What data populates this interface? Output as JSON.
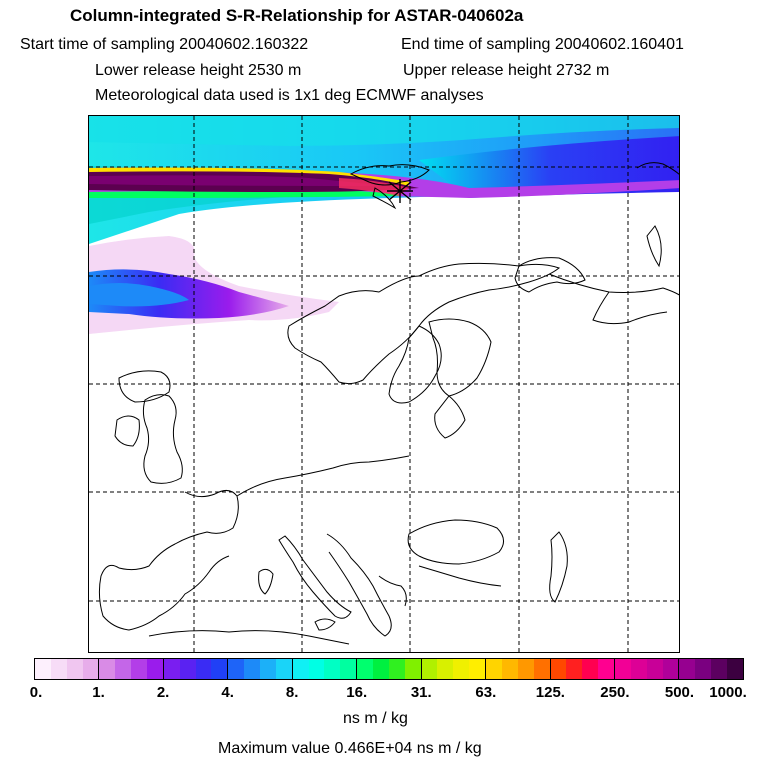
{
  "title": "Column-integrated S-R-Relationship for ASTAR-040602a",
  "sampling": {
    "start_label": "Start time of sampling 20040602.160322",
    "end_label": "End time of sampling 20040602.160401"
  },
  "release": {
    "lower_label": "Lower release height 2530 m",
    "upper_label": "Upper release height 2732 m"
  },
  "met_label": "Meteorological data used is 1x1 deg ECMWF analyses",
  "colorbar": {
    "ticks": [
      "0.",
      "1.",
      "2.",
      "4.",
      "8.",
      "16.",
      "31.",
      "63.",
      "125.",
      "250.",
      "500.",
      "1000."
    ],
    "colors": [
      "#fdf0fd",
      "#f7dcf7",
      "#f0c6f0",
      "#e7adea",
      "#d98be6",
      "#c466e8",
      "#b33ee8",
      "#9a1cec",
      "#7a1ef0",
      "#5a22f2",
      "#3a2cf4",
      "#2040f6",
      "#1e64f8",
      "#1d8af8",
      "#1cb0f8",
      "#1ad4f8",
      "#10f0f4",
      "#00ffe4",
      "#00ffc4",
      "#00ffa0",
      "#00ff6e",
      "#00f040",
      "#30f020",
      "#80f000",
      "#b0f000",
      "#d8f000",
      "#f0f000",
      "#ffee00",
      "#ffd400",
      "#ffb800",
      "#ff9800",
      "#ff7000",
      "#ff4800",
      "#ff2020",
      "#ff0050",
      "#ff0090",
      "#f20096",
      "#dd0096",
      "#c80098",
      "#b0009a",
      "#960090",
      "#7a0080",
      "#5c0060",
      "#3c0040"
    ],
    "units": "ns m / kg"
  },
  "max_value_label": "Maximum value  0.466E+04 ns m / kg",
  "map": {
    "grid": "dashed lat/lon lines",
    "release_site_icon": "asterisk-marker"
  }
}
